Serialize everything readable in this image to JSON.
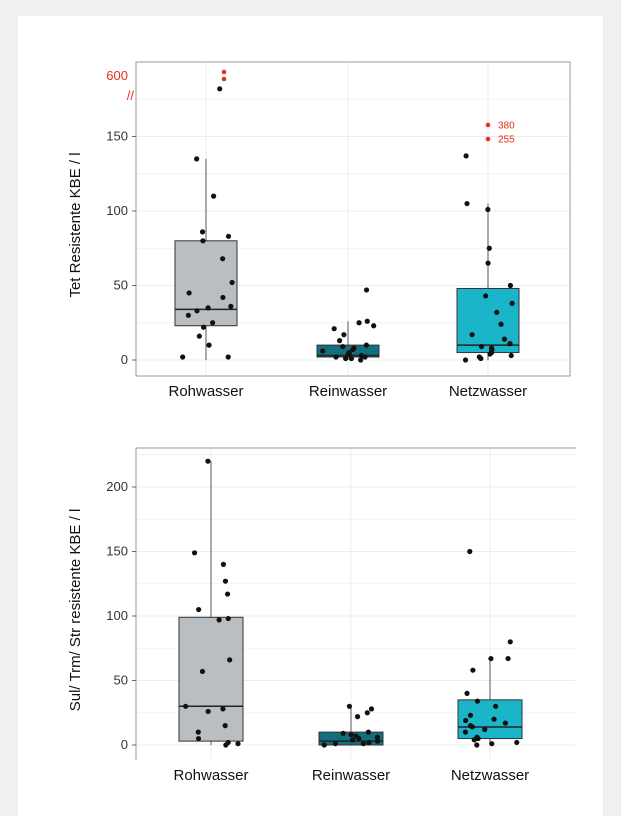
{
  "chart_data": [
    {
      "type": "box",
      "ylabel": "Tet Resistente KBE / l",
      "categories": [
        "Rohwasser",
        "Reinwasser",
        "Netzwasser"
      ],
      "y_ticks": [
        0,
        50,
        100,
        150
      ],
      "ylim": [
        0,
        180
      ],
      "axis_break": {
        "label": "600",
        "marker": "//"
      },
      "grid": true,
      "colors": {
        "Rohwasser": "#b9bec3",
        "Reinwasser": "#10707e",
        "Netzwasser": "#1ab5c8",
        "outlier": "#e8301c"
      },
      "boxes": [
        {
          "category": "Rohwasser",
          "q1": 23,
          "median": 34,
          "q3": 80,
          "whisker_low": 0,
          "whisker_high": 135,
          "points": [
            2,
            2,
            10,
            16,
            22,
            25,
            30,
            33,
            35,
            36,
            42,
            45,
            52,
            68,
            80,
            83,
            86,
            110,
            135,
            182
          ]
        },
        {
          "category": "Reinwasser",
          "q1": 2,
          "median": 3,
          "q3": 10,
          "whisker_low": 0,
          "whisker_high": 26,
          "points": [
            0,
            1,
            1,
            2,
            2,
            3,
            4,
            4,
            5,
            6,
            7,
            8,
            9,
            10,
            13,
            17,
            21,
            23,
            25,
            26,
            47
          ]
        },
        {
          "category": "Netzwasser",
          "q1": 5,
          "median": 10,
          "q3": 48,
          "whisker_low": 0,
          "whisker_high": 105,
          "points": [
            0,
            1,
            2,
            3,
            4,
            5,
            6,
            7,
            8,
            9,
            11,
            14,
            17,
            24,
            32,
            38,
            43,
            50,
            65,
            75,
            101,
            105,
            137
          ]
        }
      ],
      "broken_outliers": [
        {
          "category": "Rohwasser",
          "values": [
            "600",
            "600"
          ]
        },
        {
          "category": "Netzwasser",
          "values": [
            "380",
            "255"
          ],
          "labels": [
            "380",
            "255"
          ]
        }
      ]
    },
    {
      "type": "box",
      "ylabel": "Sul/ Trm/ Str resistente KBE / l",
      "categories": [
        "Rohwasser",
        "Reinwasser",
        "Netzwasser"
      ],
      "y_ticks": [
        0,
        50,
        100,
        150,
        200
      ],
      "ylim": [
        0,
        225
      ],
      "grid": true,
      "colors": {
        "Rohwasser": "#b9bec3",
        "Reinwasser": "#10707e",
        "Netzwasser": "#1ab5c8"
      },
      "boxes": [
        {
          "category": "Rohwasser",
          "q1": 3,
          "median": 30,
          "q3": 99,
          "whisker_low": 0,
          "whisker_high": 220,
          "points": [
            0,
            1,
            2,
            5,
            10,
            15,
            26,
            28,
            30,
            57,
            66,
            97,
            98,
            105,
            117,
            127,
            140,
            149,
            220
          ]
        },
        {
          "category": "Reinwasser",
          "q1": 0,
          "median": 3,
          "q3": 10,
          "whisker_low": 0,
          "whisker_high": 30,
          "points": [
            0,
            1,
            1,
            2,
            3,
            4,
            5,
            6,
            7,
            8,
            9,
            10,
            22,
            25,
            28,
            30
          ]
        },
        {
          "category": "Netzwasser",
          "q1": 5,
          "median": 14,
          "q3": 35,
          "whisker_low": 0,
          "whisker_high": 67,
          "points": [
            0,
            1,
            2,
            4,
            5,
            6,
            10,
            12,
            14,
            15,
            17,
            19,
            20,
            23,
            30,
            34,
            40,
            58,
            67,
            67,
            80,
            150
          ]
        }
      ]
    }
  ]
}
